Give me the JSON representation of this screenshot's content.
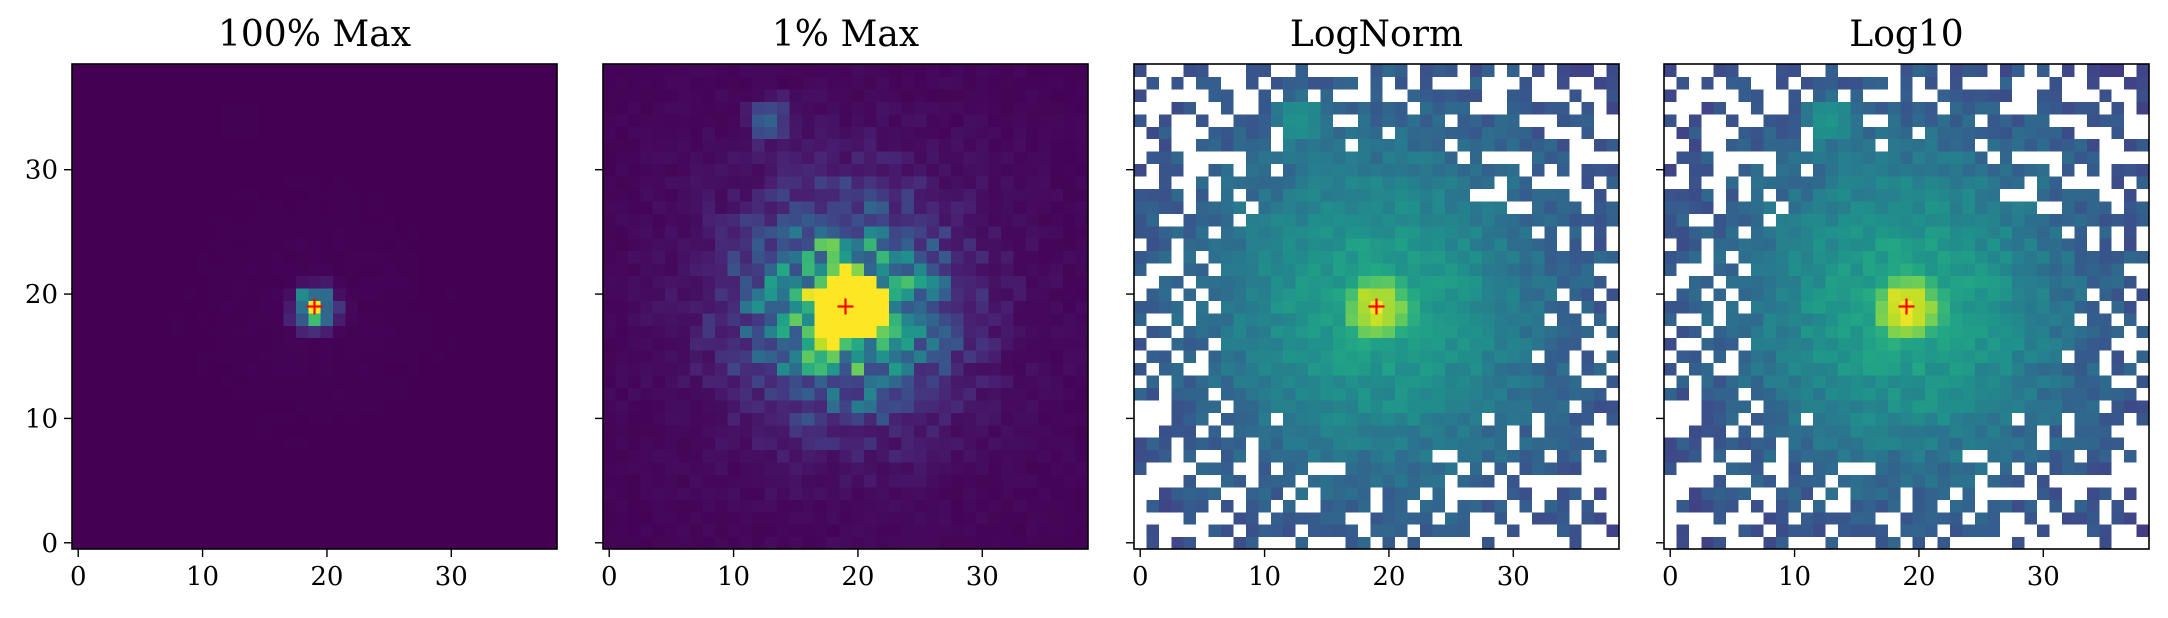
{
  "figure": {
    "colormap": "viridis",
    "bad_pixel_color": "#ffffff",
    "marker": {
      "symbol": "+",
      "color": "#ff0000"
    }
  },
  "chart_data": [
    {
      "type": "heatmap",
      "title": "100% Max",
      "xlabel": "",
      "ylabel": "",
      "xlim": [
        -0.5,
        38.5
      ],
      "ylim": [
        -0.5,
        38.5
      ],
      "xticks": [
        0,
        10,
        20,
        30
      ],
      "yticks": [
        0,
        10,
        20,
        30
      ],
      "x_tick_labels": [
        "0",
        "10",
        "20",
        "30"
      ],
      "y_tick_labels": [
        "0",
        "10",
        "20",
        "30"
      ],
      "show_y_tick_labels": true,
      "grid": false,
      "center": [
        19,
        19
      ],
      "scaling": "linear, clipped at 100% of max"
    },
    {
      "type": "heatmap",
      "title": "1% Max",
      "xlabel": "",
      "ylabel": "",
      "xlim": [
        -0.5,
        38.5
      ],
      "ylim": [
        -0.5,
        38.5
      ],
      "xticks": [
        0,
        10,
        20,
        30
      ],
      "yticks": [
        0,
        10,
        20,
        30
      ],
      "x_tick_labels": [
        "0",
        "10",
        "20",
        "30"
      ],
      "y_tick_labels": [
        "0",
        "10",
        "20",
        "30"
      ],
      "show_y_tick_labels": false,
      "grid": false,
      "center": [
        19,
        19
      ],
      "scaling": "linear, clipped at 1% of max"
    },
    {
      "type": "heatmap",
      "title": "LogNorm",
      "xlabel": "",
      "ylabel": "",
      "xlim": [
        -0.5,
        38.5
      ],
      "ylim": [
        -0.5,
        38.5
      ],
      "xticks": [
        0,
        10,
        20,
        30
      ],
      "yticks": [
        0,
        10,
        20,
        30
      ],
      "x_tick_labels": [
        "0",
        "10",
        "20",
        "30"
      ],
      "y_tick_labels": [
        "0",
        "10",
        "20",
        "30"
      ],
      "show_y_tick_labels": false,
      "grid": false,
      "center": [
        19,
        19
      ],
      "scaling": "log",
      "nonpositive_pixels": "white"
    },
    {
      "type": "heatmap",
      "title": "Log10",
      "xlabel": "",
      "ylabel": "",
      "xlim": [
        -0.5,
        38.5
      ],
      "ylim": [
        -0.5,
        38.5
      ],
      "xticks": [
        0,
        10,
        20,
        30
      ],
      "yticks": [
        0,
        10,
        20,
        30
      ],
      "x_tick_labels": [
        "0",
        "10",
        "20",
        "30"
      ],
      "y_tick_labels": [
        "0",
        "10",
        "20",
        "30"
      ],
      "show_y_tick_labels": false,
      "grid": false,
      "center": [
        19,
        19
      ],
      "scaling": "log10",
      "nonpositive_pixels": "white"
    }
  ]
}
